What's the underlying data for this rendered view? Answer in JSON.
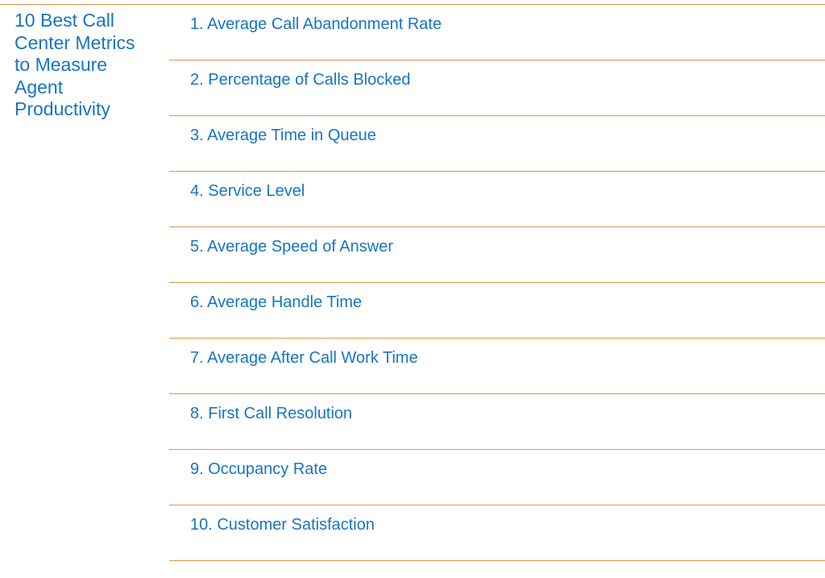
{
  "title": "10 Best Call\nCenter Metrics\nto Measure\nAgent\nProductivity",
  "colors": {
    "text": "#1874c4",
    "rule": "#e8914a",
    "background": "#ffffff"
  },
  "items": [
    "1. Average Call Abandonment Rate",
    "2. Percentage of Calls Blocked",
    "3. Average Time in Queue",
    "4. Service Level",
    "5. Average Speed of Answer",
    "6. Average Handle Time",
    "7. Average After Call Work Time",
    "8. First Call Resolution",
    "9. Occupancy Rate",
    "10. Customer Satisfaction"
  ]
}
